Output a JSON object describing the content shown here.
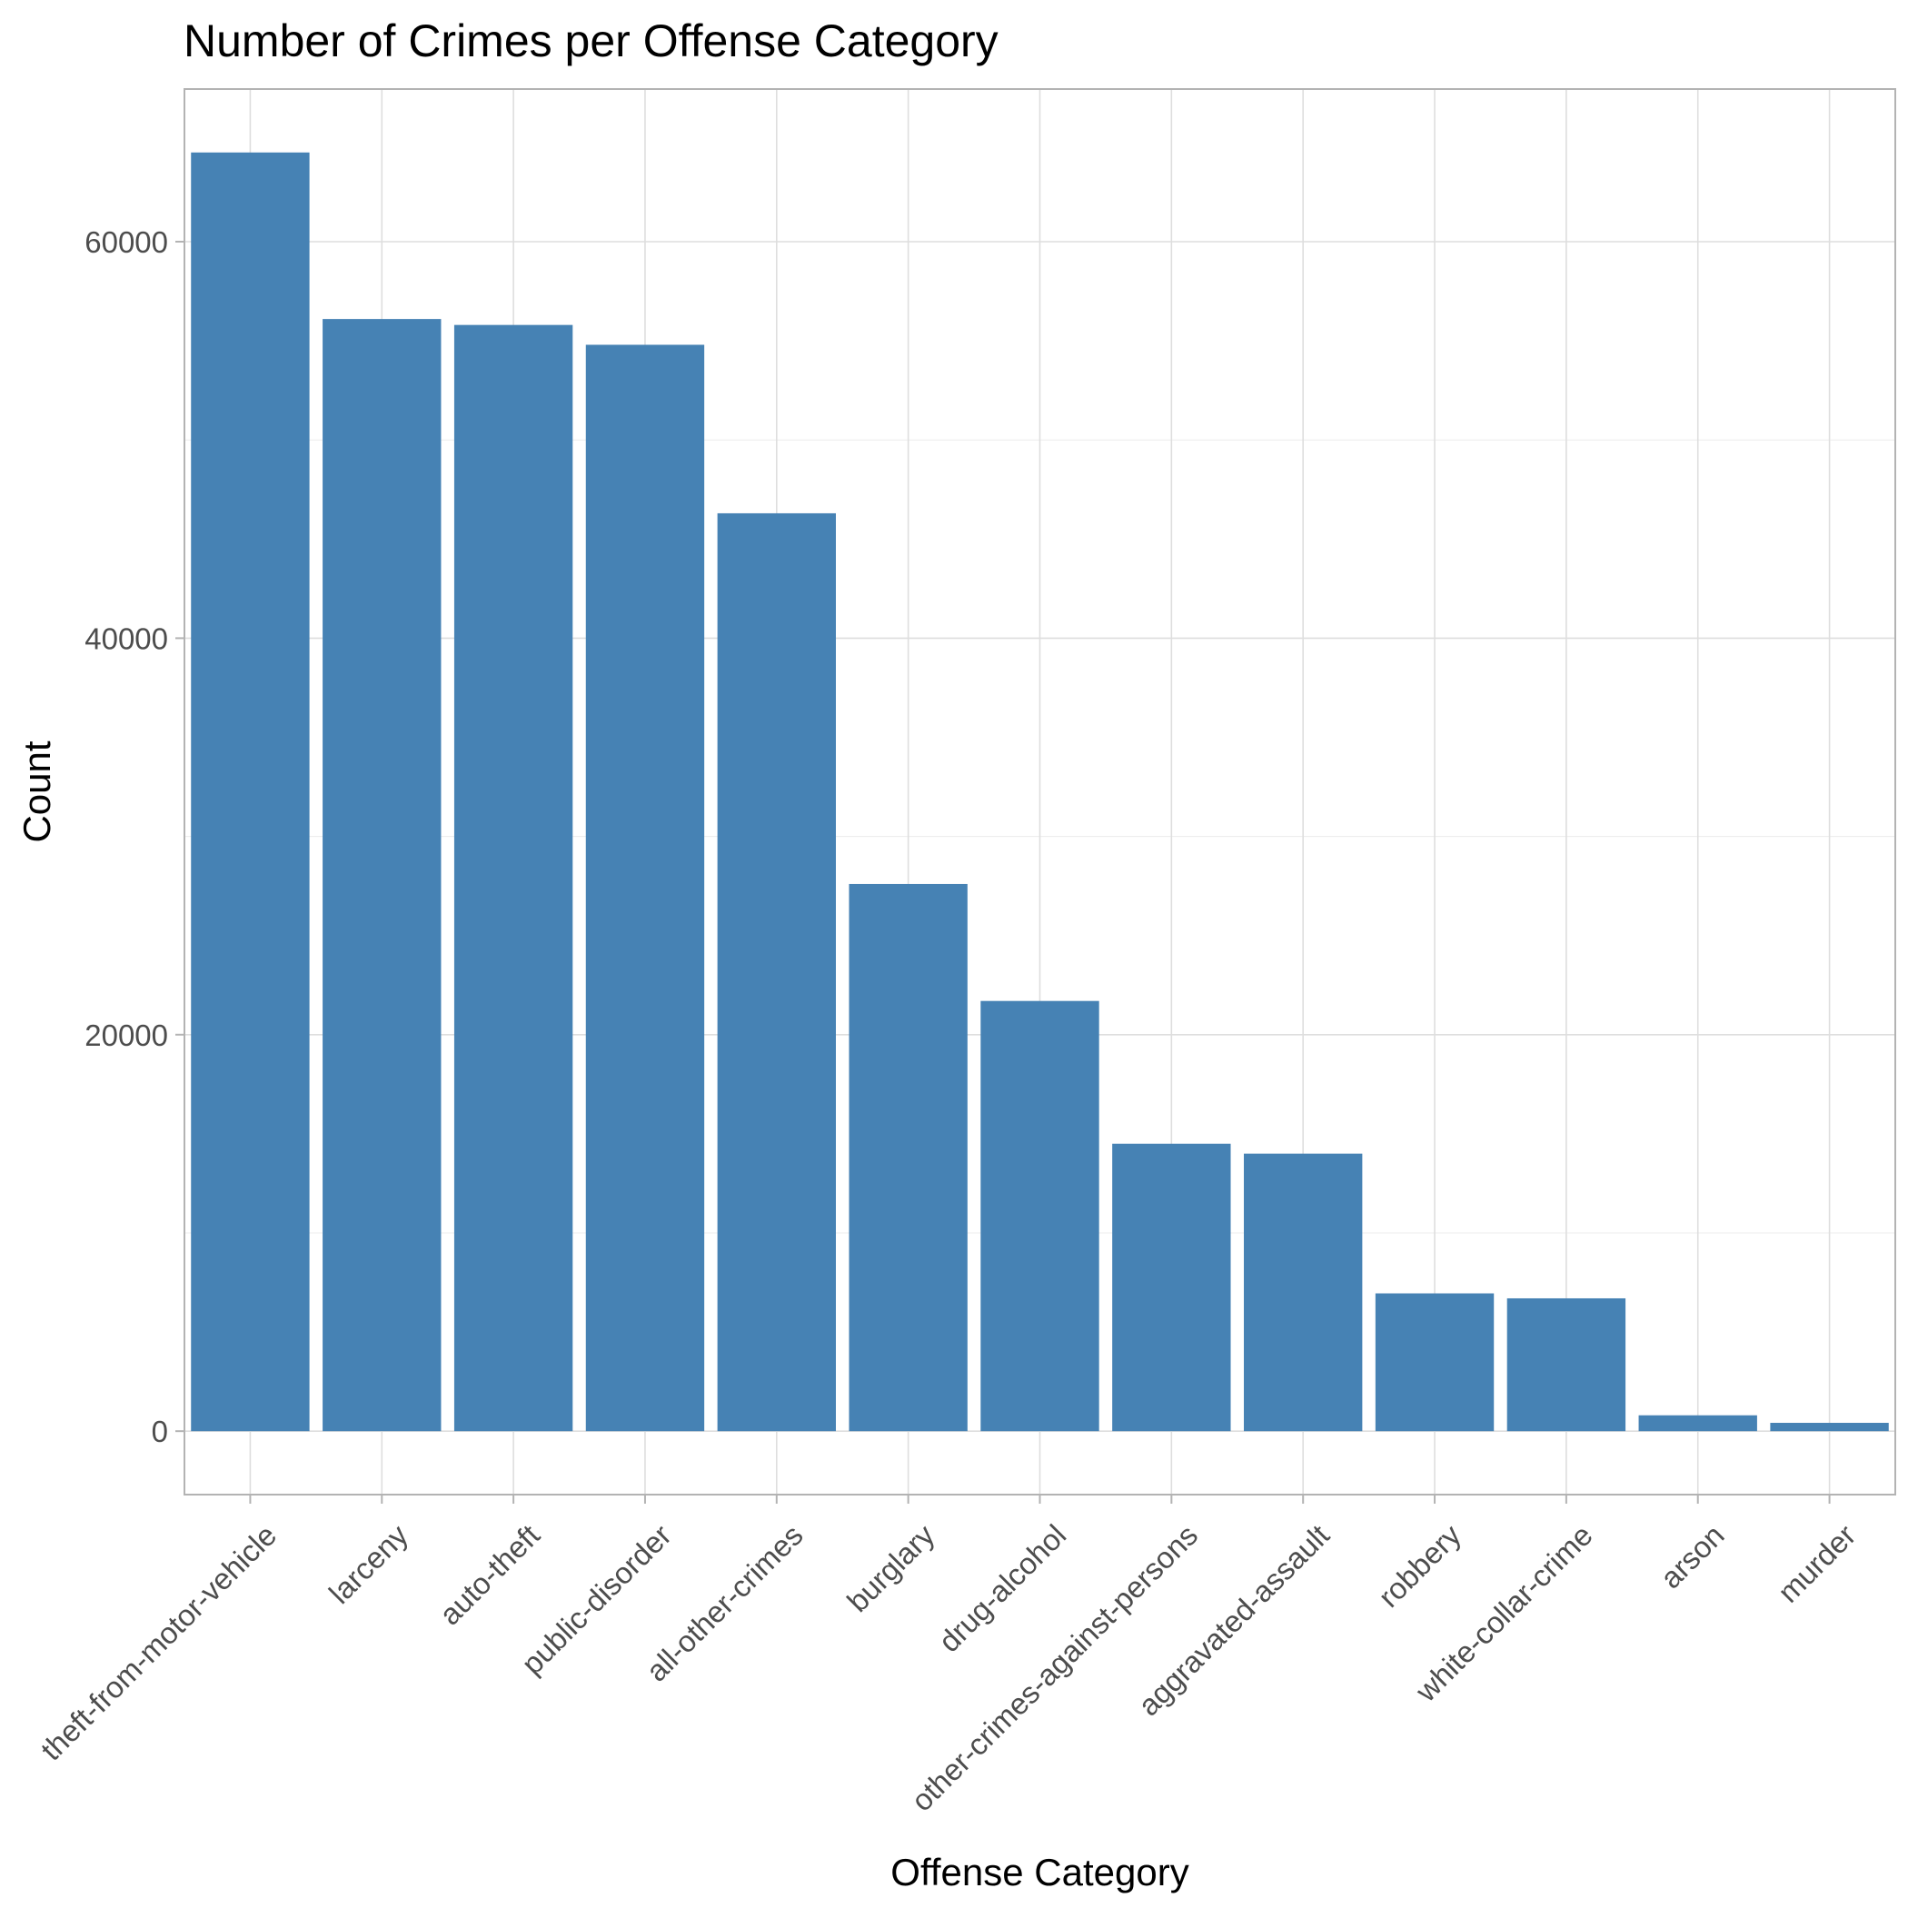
{
  "chart_data": {
    "type": "bar",
    "title": "Number of Crimes per Offense Category",
    "xlabel": "Offense Category",
    "ylabel": "Count",
    "categories": [
      "theft-from-motor-vehicle",
      "larceny",
      "auto-theft",
      "public-disorder",
      "all-other-crimes",
      "burglary",
      "drug-alcohol",
      "other-crimes-against-persons",
      "aggravated-assault",
      "robbery",
      "white-collar-crime",
      "arson",
      "murder"
    ],
    "values": [
      64500,
      56100,
      55800,
      54800,
      46300,
      27600,
      21700,
      14500,
      14000,
      6950,
      6700,
      800,
      420
    ],
    "ylim": [
      -3200,
      67700
    ],
    "yticks": [
      0,
      20000,
      40000,
      60000
    ],
    "ytick_labels": [
      "0",
      "20000",
      "40000",
      "60000"
    ],
    "bar_color": "#4682b4",
    "grid": true,
    "legend": "none"
  }
}
